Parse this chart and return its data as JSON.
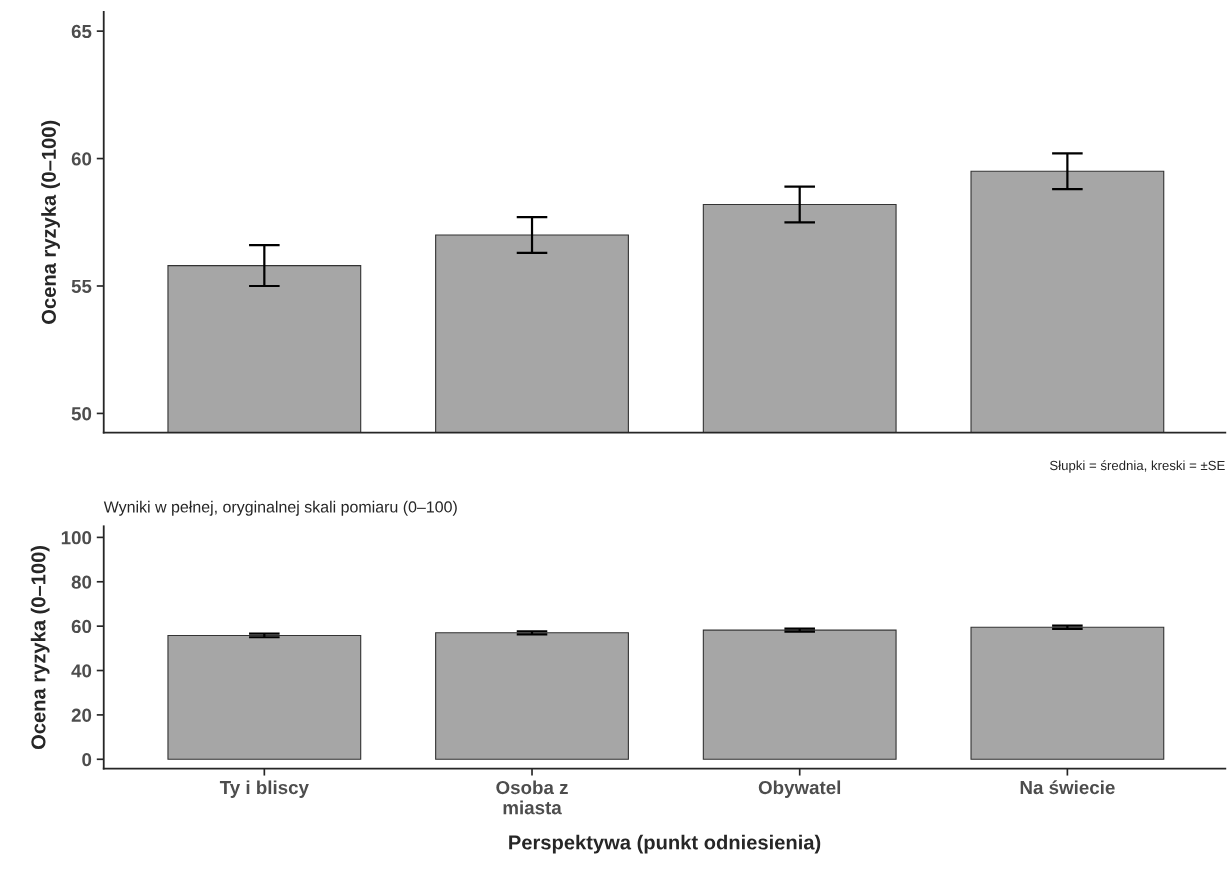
{
  "chart_data": [
    {
      "type": "bar",
      "categories": [
        null,
        null,
        null,
        null
      ],
      "values": [
        55.8,
        57.0,
        58.2,
        59.5
      ],
      "errors": [
        0.8,
        0.7,
        0.7,
        0.7
      ],
      "color": "#a6a6a6",
      "ylabel": "Ocena ryzyka (0–100)",
      "ylim": [
        49.25,
        65.75
      ],
      "yticks": [
        50,
        55,
        60,
        65
      ],
      "tick_labels": "y",
      "annotations": [
        "Słupki = średnia, kreski = ±SE"
      ]
    },
    {
      "type": "bar",
      "title": "Wyniki w pełnej, oryginalnej skali pomiaru (0–100)",
      "categories": [
        "Ty i bliscy",
        "Osoba z\nmiasta",
        "Obywatel",
        "Na świecie"
      ],
      "values": [
        55.8,
        57.0,
        58.2,
        59.5
      ],
      "errors": [
        0.8,
        0.7,
        0.7,
        0.7
      ],
      "color": "#a6a6a6",
      "xlabel": "Perspektywa (punkt odniesienia)",
      "ylabel": "Ocena ryzyka (0–100)",
      "ylim": [
        -4.2,
        105
      ],
      "yticks": [
        0,
        20,
        40,
        60,
        80,
        100
      ]
    }
  ]
}
